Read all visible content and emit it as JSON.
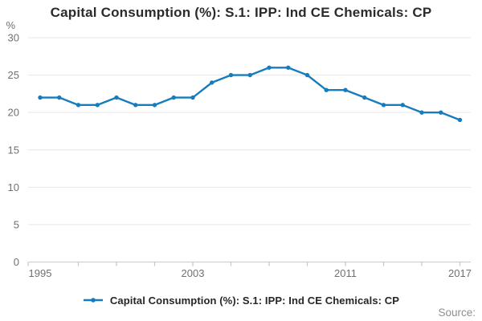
{
  "header": {
    "title": "Capital Consumption (%): S.1: IPP: Ind CE Chemicals: CP"
  },
  "chart_data": {
    "type": "line",
    "title": "Capital Consumption (%): S.1: IPP: Ind CE Chemicals: CP",
    "unit_label": "%",
    "x": [
      1995,
      1996,
      1997,
      1998,
      1999,
      2000,
      2001,
      2002,
      2003,
      2004,
      2005,
      2006,
      2007,
      2008,
      2009,
      2010,
      2011,
      2012,
      2013,
      2014,
      2015,
      2016,
      2017
    ],
    "series": [
      {
        "name": "Capital Consumption (%): S.1: IPP: Ind CE Chemicals: CP",
        "values": [
          22,
          22,
          21,
          21,
          22,
          21,
          21,
          22,
          22,
          24,
          25,
          25,
          26,
          26,
          25,
          23,
          23,
          22,
          21,
          21,
          20,
          20,
          19
        ]
      }
    ],
    "ylim": [
      0,
      30
    ],
    "y_ticks": [
      0,
      5,
      10,
      15,
      20,
      25,
      30
    ],
    "x_labeled_ticks": [
      1995,
      2003,
      2011,
      2017
    ],
    "x_minor_tick_years": [
      1997,
      1999,
      2001,
      2003,
      2005,
      2007,
      2009,
      2011,
      2013,
      2015,
      2017
    ],
    "grid": "horizontal",
    "legend_position": "bottom-center"
  },
  "legend": {
    "label": "Capital Consumption (%): S.1: IPP: Ind CE Chemicals: CP"
  },
  "footer": {
    "source_label": "Source:"
  },
  "colors": {
    "line": "#177cbe",
    "grid": "#e6e6e6",
    "axis": "#cbcbcb",
    "tick": "#b9c9d7",
    "title_text": "#2b2b2b",
    "axis_text": "#707070",
    "legend_text": "#262626",
    "source_text": "#8f8f8f"
  }
}
